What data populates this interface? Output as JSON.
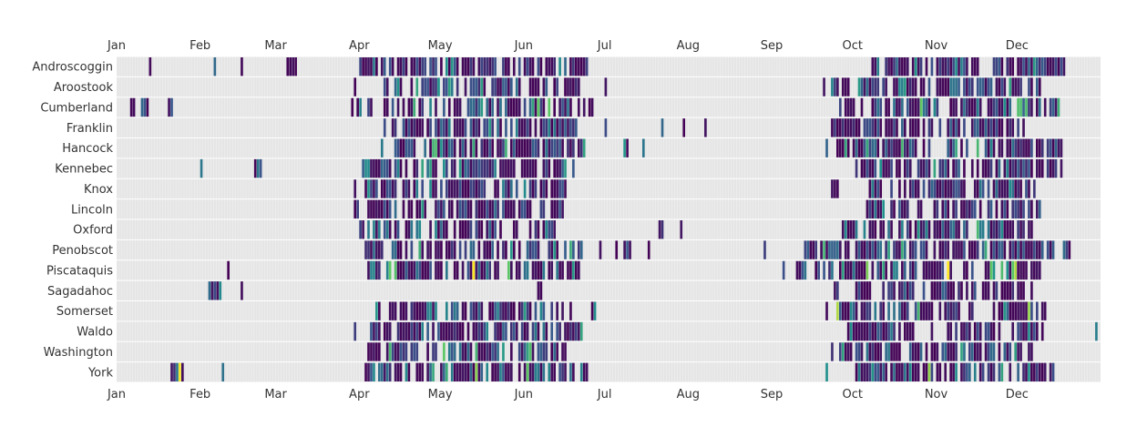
{
  "chart_data": {
    "type": "heatmap",
    "description_free": true,
    "x_axis": {
      "labels": [
        "Jan",
        "Feb",
        "Mar",
        "Apr",
        "May",
        "Jun",
        "Jul",
        "Aug",
        "Sep",
        "Oct",
        "Nov",
        "Dec"
      ],
      "month_start_day_of_year": [
        1,
        32,
        60,
        91,
        121,
        152,
        182,
        213,
        244,
        274,
        305,
        335
      ],
      "days_in_year": 365,
      "positions": [
        "top",
        "bottom"
      ]
    },
    "y_axis": {
      "categories": [
        "Androscoggin",
        "Aroostook",
        "Cumberland",
        "Franklin",
        "Hancock",
        "Kennebec",
        "Knox",
        "Lincoln",
        "Oxford",
        "Penobscot",
        "Piscataquis",
        "Sagadahoc",
        "Somerset",
        "Waldo",
        "Washington",
        "York"
      ]
    },
    "colors": {
      "background": "#e5e5e5",
      "grid": "#ffffff",
      "scale": [
        "#440154",
        "#3b528b",
        "#21918c",
        "#5ec962",
        "#fde725"
      ]
    },
    "value_scale": [
      0,
      1
    ],
    "series": [
      {
        "name": "Androscoggin",
        "spans": [
          [
            13,
            13
          ],
          [
            37,
            37
          ],
          [
            47,
            47
          ],
          [
            64,
            67
          ],
          [
            91,
            97
          ],
          [
            99,
            112
          ],
          [
            113,
            165
          ],
          [
            166,
            175
          ]
        ],
        "sparse_late": [
          [
            281,
            283
          ],
          [
            284,
            316
          ],
          [
            318,
            330
          ],
          [
            331,
            345
          ],
          [
            346,
            352
          ]
        ],
        "level": 0.22
      },
      {
        "name": "Aroostook",
        "spans": [
          [
            89,
            89
          ],
          [
            100,
            101
          ],
          [
            104,
            112
          ],
          [
            113,
            138
          ],
          [
            140,
            160
          ],
          [
            162,
            172
          ],
          [
            182,
            182
          ]
        ],
        "sparse_late": [
          [
            261,
            275
          ],
          [
            276,
            300
          ],
          [
            301,
            330
          ],
          [
            332,
            343
          ]
        ],
        "level": 0.25
      },
      {
        "name": "Cumberland",
        "spans": [
          [
            6,
            7
          ],
          [
            10,
            12
          ],
          [
            20,
            21
          ],
          [
            88,
            88
          ],
          [
            90,
            97
          ],
          [
            100,
            178
          ]
        ],
        "sparse_late": [
          [
            268,
            275
          ],
          [
            277,
            345
          ],
          [
            347,
            350
          ]
        ],
        "level": 0.35
      },
      {
        "name": "Franklin",
        "spans": [
          [
            100,
            100
          ],
          [
            103,
            104
          ],
          [
            107,
            112
          ],
          [
            113,
            171
          ],
          [
            182,
            182
          ],
          [
            203,
            203
          ],
          [
            211,
            211
          ],
          [
            219,
            219
          ]
        ],
        "sparse_late": [
          [
            266,
            272
          ],
          [
            273,
            313
          ],
          [
            315,
            338
          ]
        ],
        "level": 0.22
      },
      {
        "name": "Hancock",
        "spans": [
          [
            99,
            99
          ],
          [
            104,
            110
          ],
          [
            111,
            174
          ],
          [
            189,
            190
          ],
          [
            196,
            196
          ]
        ],
        "sparse_late": [
          [
            264,
            264
          ],
          [
            268,
            275
          ],
          [
            276,
            316
          ],
          [
            317,
            351
          ]
        ],
        "level": 0.3
      },
      {
        "name": "Kennebec",
        "spans": [
          [
            32,
            32
          ],
          [
            52,
            54
          ],
          [
            92,
            97
          ],
          [
            98,
            108
          ],
          [
            110,
            120
          ],
          [
            122,
            170
          ]
        ],
        "sparse_late": [
          [
            275,
            326
          ],
          [
            327,
            340
          ],
          [
            342,
            351
          ]
        ],
        "level": 0.25
      },
      {
        "name": "Knox",
        "spans": [
          [
            89,
            89
          ],
          [
            93,
            97
          ],
          [
            99,
            104
          ],
          [
            106,
            160
          ],
          [
            162,
            167
          ]
        ],
        "sparse_late": [
          [
            266,
            268
          ],
          [
            280,
            296
          ],
          [
            297,
            330
          ],
          [
            331,
            343
          ]
        ],
        "level": 0.2
      },
      {
        "name": "Lincoln",
        "spans": [
          [
            89,
            90
          ],
          [
            94,
            102
          ],
          [
            104,
            160
          ],
          [
            162,
            166
          ]
        ],
        "sparse_late": [
          [
            279,
            285
          ],
          [
            288,
            330
          ],
          [
            331,
            345
          ]
        ],
        "level": 0.22
      },
      {
        "name": "Oxford",
        "spans": [
          [
            91,
            112
          ],
          [
            113,
            130
          ],
          [
            131,
            140
          ],
          [
            141,
            160
          ],
          [
            161,
            163
          ],
          [
            202,
            203
          ],
          [
            210,
            210
          ]
        ],
        "sparse_late": [
          [
            267,
            275
          ],
          [
            276,
            313
          ],
          [
            315,
            340
          ]
        ],
        "level": 0.45
      },
      {
        "name": "Penobscot",
        "spans": [
          [
            93,
            120
          ],
          [
            121,
            165
          ],
          [
            166,
            173
          ],
          [
            180,
            180
          ],
          [
            186,
            186
          ],
          [
            189,
            191
          ],
          [
            198,
            198
          ],
          [
            241,
            241
          ]
        ],
        "sparse_late": [
          [
            256,
            260
          ],
          [
            262,
            280
          ],
          [
            281,
            320
          ],
          [
            322,
            348
          ],
          [
            352,
            354
          ]
        ],
        "level": 0.3
      },
      {
        "name": "Piscataquis",
        "spans": [
          [
            42,
            42
          ],
          [
            94,
            98
          ],
          [
            101,
            130
          ],
          [
            131,
            155
          ],
          [
            156,
            172
          ]
        ],
        "sparse_late": [
          [
            248,
            248
          ],
          [
            253,
            256
          ],
          [
            260,
            273
          ],
          [
            274,
            310
          ],
          [
            312,
            345
          ]
        ],
        "level": 0.55
      },
      {
        "name": "Sagadahoc",
        "spans": [
          [
            35,
            39
          ],
          [
            47,
            47
          ],
          [
            157,
            158
          ]
        ],
        "sparse_late": [
          [
            267,
            268
          ],
          [
            274,
            282
          ],
          [
            284,
            296
          ],
          [
            300,
            320
          ],
          [
            322,
            340
          ]
        ],
        "level": 0.2
      },
      {
        "name": "Somerset",
        "spans": [
          [
            97,
            98
          ],
          [
            101,
            112
          ],
          [
            113,
            169
          ],
          [
            177,
            178
          ]
        ],
        "sparse_late": [
          [
            264,
            264
          ],
          [
            266,
            280
          ],
          [
            281,
            322
          ],
          [
            324,
            346
          ]
        ],
        "level": 0.45
      },
      {
        "name": "Waldo",
        "spans": [
          [
            89,
            89
          ],
          [
            94,
            108
          ],
          [
            109,
            165
          ],
          [
            167,
            173
          ]
        ],
        "sparse_late": [
          [
            272,
            282
          ],
          [
            283,
            346
          ],
          [
            364,
            364
          ]
        ],
        "level": 0.25
      },
      {
        "name": "Washington",
        "spans": [
          [
            94,
            98
          ],
          [
            100,
            112
          ],
          [
            113,
            168
          ]
        ],
        "sparse_late": [
          [
            266,
            285
          ],
          [
            286,
            312
          ],
          [
            314,
            340
          ]
        ],
        "level": 0.35
      },
      {
        "name": "York",
        "spans": [
          [
            21,
            25
          ],
          [
            40,
            40
          ],
          [
            93,
            96
          ],
          [
            98,
            175
          ]
        ],
        "sparse_late": [
          [
            264,
            264
          ],
          [
            275,
            330
          ],
          [
            332,
            348
          ]
        ],
        "level": 0.5
      }
    ]
  }
}
